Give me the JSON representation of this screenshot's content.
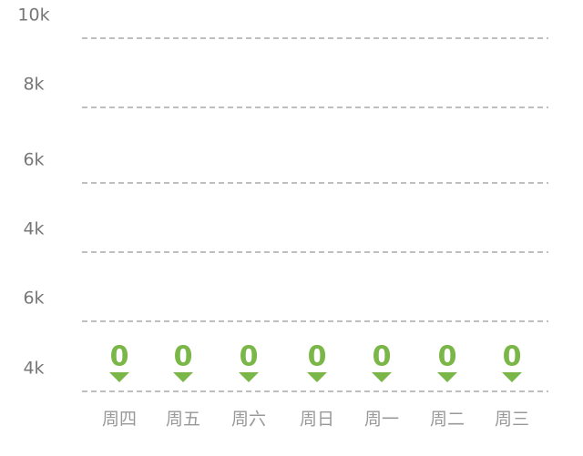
{
  "chart_data": {
    "type": "bar",
    "y_labels": [
      "10k",
      "8k",
      "6k",
      "4k",
      "6k",
      "4k"
    ],
    "categories": [
      "周四",
      "周五",
      "周六",
      "周日",
      "周一",
      "周二",
      "周三"
    ],
    "values": [
      0,
      0,
      0,
      0,
      0,
      0,
      0
    ],
    "color": "#7ab648"
  }
}
